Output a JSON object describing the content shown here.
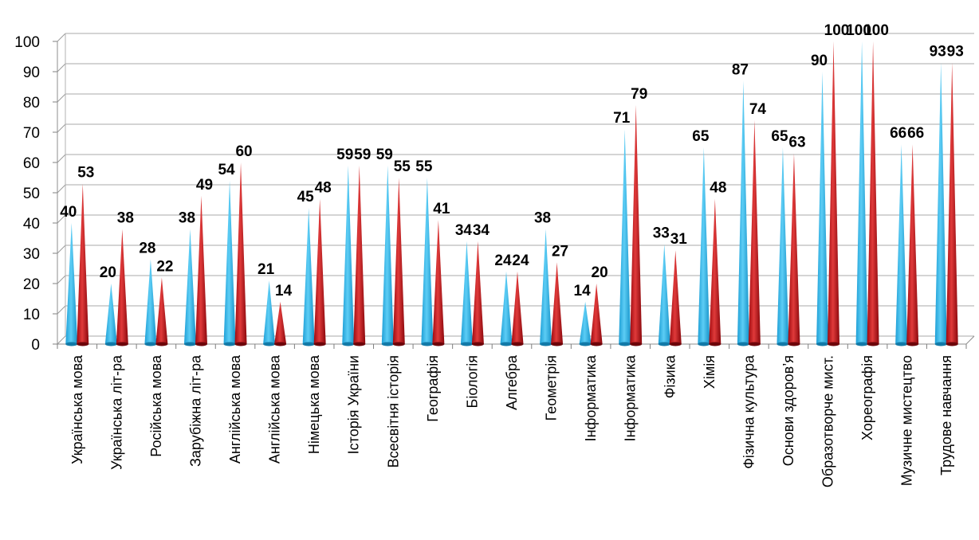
{
  "chart_data": {
    "type": "bar",
    "title": "",
    "xlabel": "",
    "ylabel": "",
    "ylim": [
      0,
      100
    ],
    "yticks": [
      0,
      10,
      20,
      30,
      40,
      50,
      60,
      70,
      80,
      90,
      100
    ],
    "grid": true,
    "legend": "none",
    "bar_shape": "3d-cone",
    "categories": [
      "Українська мова",
      "Українська літ-ра",
      "Російська мова",
      "Зарубіжна  літ-ра",
      "Англійська мова",
      "Англійська мова",
      "Німецька мова",
      "Історія України",
      "Всесвітня історія",
      "Географія",
      "Біологія",
      "Алгебра",
      "Геометрія",
      "Інформатика",
      "Інформатика",
      "Фізика",
      "Хімія",
      "Фізична культура",
      "Основи здоров’я",
      "Образотворче  мист.",
      "Хореографія",
      "Музичне мистецтво",
      "Трудове навчання"
    ],
    "series": [
      {
        "color": "#29B3E8",
        "values": [
          40,
          20,
          28,
          38,
          54,
          21,
          45,
          59,
          59,
          55,
          34,
          24,
          38,
          14,
          71,
          33,
          65,
          87,
          65,
          90,
          100,
          66,
          93
        ]
      },
      {
        "color": "#C0121A",
        "values": [
          53,
          38,
          22,
          49,
          60,
          14,
          48,
          59,
          55,
          41,
          34,
          24,
          27,
          20,
          79,
          31,
          48,
          74,
          63,
          100,
          100,
          66,
          93
        ]
      }
    ]
  }
}
